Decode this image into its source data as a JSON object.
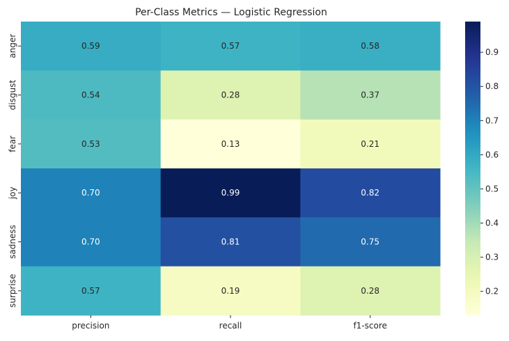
{
  "chart_data": {
    "type": "heatmap",
    "title": "Per-Class Metrics — Logistic Regression",
    "xlabel": "",
    "ylabel": "",
    "columns": [
      "precision",
      "recall",
      "f1-score"
    ],
    "rows": [
      "anger",
      "disgust",
      "fear",
      "joy",
      "sadness",
      "surprise"
    ],
    "values": [
      [
        0.59,
        0.57,
        0.58
      ],
      [
        0.54,
        0.28,
        0.37
      ],
      [
        0.53,
        0.13,
        0.21
      ],
      [
        0.7,
        0.99,
        0.82
      ],
      [
        0.7,
        0.81,
        0.75
      ],
      [
        0.57,
        0.19,
        0.28
      ]
    ],
    "value_labels": [
      [
        "0.59",
        "0.57",
        "0.58"
      ],
      [
        "0.54",
        "0.28",
        "0.37"
      ],
      [
        "0.53",
        "0.13",
        "0.21"
      ],
      [
        "0.70",
        "0.99",
        "0.82"
      ],
      [
        "0.70",
        "0.81",
        "0.75"
      ],
      [
        "0.57",
        "0.19",
        "0.28"
      ]
    ],
    "colormap": "YlGnBu",
    "colorbar": {
      "range": [
        0.13,
        0.99
      ],
      "ticks": [
        0.2,
        0.3,
        0.4,
        0.5,
        0.6,
        0.7,
        0.8,
        0.9
      ],
      "tick_labels": [
        "0.2",
        "0.3",
        "0.4",
        "0.5",
        "0.6",
        "0.7",
        "0.8",
        "0.9"
      ]
    }
  }
}
